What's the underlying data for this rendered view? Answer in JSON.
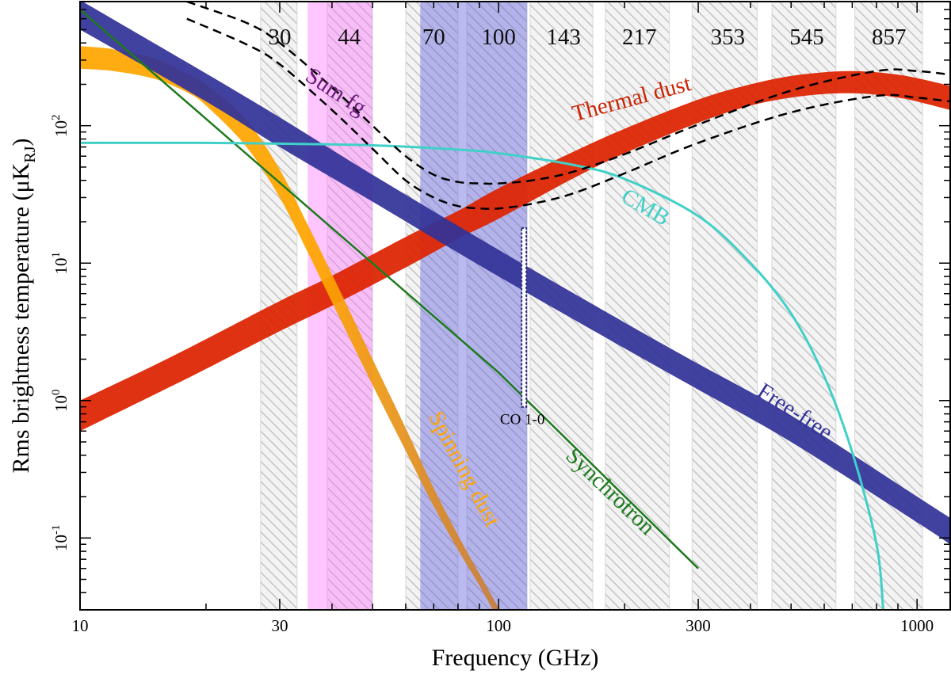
{
  "chart_data": {
    "type": "line",
    "title": "",
    "xlabel": "Frequency (GHz)",
    "ylabel": {
      "main": "Rms brightness temperature (μK",
      "sub": "RJ",
      "close": ")"
    },
    "xscale": "log",
    "yscale": "log",
    "xlim": [
      10,
      1200
    ],
    "ylim": [
      0.03,
      800
    ],
    "x_ticks": [
      {
        "value": 10,
        "label": "10"
      },
      {
        "value": 30,
        "label": "30"
      },
      {
        "value": 100,
        "label": "100"
      },
      {
        "value": 300,
        "label": "300"
      },
      {
        "value": 1000,
        "label": "1000"
      }
    ],
    "y_ticks": [
      {
        "value": 0.1,
        "base": "10",
        "exp": "-1"
      },
      {
        "value": 1,
        "base": "10",
        "exp": "0"
      },
      {
        "value": 10,
        "base": "10",
        "exp": "1"
      },
      {
        "value": 100,
        "base": "10",
        "exp": "2"
      }
    ],
    "bands": [
      {
        "label": "30",
        "lo": 27,
        "hi": 33,
        "label_x": 30
      },
      {
        "label": "44",
        "lo": 39,
        "hi": 50,
        "label_x": 44
      },
      {
        "label": "70",
        "lo": 60,
        "hi": 80,
        "label_x": 70
      },
      {
        "label": "100",
        "lo": 84,
        "hi": 117,
        "label_x": 100
      },
      {
        "label": "143",
        "lo": 119,
        "hi": 168,
        "label_x": 143
      },
      {
        "label": "217",
        "lo": 180,
        "hi": 256,
        "label_x": 217
      },
      {
        "label": "353",
        "lo": 290,
        "hi": 415,
        "label_x": 353
      },
      {
        "label": "545",
        "lo": 450,
        "hi": 640,
        "label_x": 545
      },
      {
        "label": "857",
        "lo": 710,
        "hi": 1030,
        "label_x": 857
      }
    ],
    "highlight_bands": [
      {
        "name": "pink",
        "lo": 35,
        "hi": 50,
        "color": "#ff66ff",
        "opacity": 0.38
      },
      {
        "name": "blue",
        "lo": 65,
        "hi": 117,
        "color": "#5b5bdd",
        "opacity": 0.42
      }
    ],
    "series": [
      {
        "name": "Thermal dust",
        "color": "#dd2200",
        "kind": "band",
        "x": [
          10,
          15,
          20,
          30,
          40,
          60,
          80,
          100,
          150,
          200,
          300,
          400,
          500,
          600,
          700,
          800,
          900,
          1000,
          1200
        ],
        "lower": [
          0.6,
          1.1,
          1.7,
          3.2,
          4.9,
          9.3,
          15,
          21,
          41,
          63,
          105,
          140,
          160,
          170,
          172,
          168,
          160,
          150,
          130
        ],
        "upper": [
          1.0,
          1.8,
          2.8,
          5.3,
          8.1,
          15.5,
          24,
          35,
          64,
          95,
          155,
          200,
          230,
          245,
          250,
          245,
          235,
          222,
          195
        ]
      },
      {
        "name": "Spinning dust",
        "color": "#ffa500",
        "color_end": "#c27a44",
        "kind": "band",
        "x": [
          10,
          12,
          15,
          18,
          20,
          25,
          30,
          35,
          40,
          50,
          60,
          70,
          80,
          90,
          100,
          110
        ],
        "lower": [
          260,
          250,
          220,
          175,
          140,
          70,
          30,
          12,
          5.2,
          1.3,
          0.43,
          0.17,
          0.082,
          0.045,
          0.025,
          0.015
        ],
        "upper": [
          380,
          360,
          310,
          240,
          200,
          110,
          48,
          19,
          8.3,
          2.0,
          0.63,
          0.23,
          0.105,
          0.055,
          0.031,
          0.018
        ]
      },
      {
        "name": "Free-free",
        "color": "#333399",
        "kind": "band",
        "x": [
          10,
          20,
          30,
          50,
          100,
          200,
          300,
          500,
          1000,
          1200
        ],
        "lower": [
          500,
          150,
          70,
          28,
          8,
          2.4,
          1.2,
          0.5,
          0.13,
          0.09
        ],
        "upper": [
          820,
          240,
          115,
          44,
          12.5,
          3.7,
          1.85,
          0.78,
          0.2,
          0.14
        ]
      },
      {
        "name": "Synchrotron",
        "color": "#1e7a1e",
        "kind": "line",
        "x": [
          10,
          100,
          300
        ],
        "y": [
          700,
          1.6,
          0.06
        ]
      },
      {
        "name": "CMB",
        "color": "#40d0c8",
        "kind": "line",
        "x": [
          10,
          20,
          30,
          50,
          80,
          100,
          150,
          200,
          300,
          400,
          500,
          600,
          700,
          800,
          830
        ],
        "y": [
          75,
          75,
          74,
          72,
          67,
          63,
          52,
          41,
          22,
          10,
          4.3,
          1.5,
          0.42,
          0.09,
          0.03
        ]
      },
      {
        "name": "Sum fg (upper)",
        "color": "#000000",
        "kind": "dashed",
        "x": [
          18,
          25,
          30,
          40,
          50,
          60,
          70,
          80,
          90,
          100,
          120,
          150,
          200,
          300,
          500,
          800,
          1000,
          1200
        ],
        "y": [
          800,
          560,
          400,
          190,
          100,
          60,
          44,
          39,
          38,
          38,
          40,
          46,
          62,
          102,
          180,
          250,
          250,
          235
        ]
      },
      {
        "name": "Sum fg (lower)",
        "color": "#000000",
        "kind": "dashed",
        "x": [
          18,
          25,
          30,
          40,
          50,
          60,
          70,
          80,
          90,
          100,
          120,
          150,
          200,
          300,
          500,
          800,
          1000,
          1200
        ],
        "y": [
          600,
          390,
          280,
          130,
          68,
          40,
          30,
          26,
          25,
          25,
          27,
          32,
          45,
          75,
          125,
          165,
          160,
          150
        ]
      }
    ],
    "co_line": {
      "label": "CO 1-0",
      "x": 115,
      "y_lo": 0.9,
      "y_hi": 18,
      "color": "#2a2a7a"
    },
    "annotations": [
      {
        "text": "Sum fg",
        "x": 40,
        "y": 160,
        "angle": 33,
        "color": "#6a1b7a"
      },
      {
        "text": "Thermal dust",
        "x": 210,
        "y": 140,
        "angle": -15,
        "color": "#cc2200"
      },
      {
        "text": "CMB",
        "x": 220,
        "y": 23,
        "angle": 30,
        "color": "#40d0c8"
      },
      {
        "text": "Free-free",
        "x": 500,
        "y": 0.75,
        "angle": 33,
        "color": "#333399"
      },
      {
        "text": "Spinning dust",
        "x": 80,
        "y": 0.3,
        "angle": 62,
        "color": "#ffa500"
      },
      {
        "text": "Synchrotron",
        "x": 180,
        "y": 0.2,
        "angle": 44,
        "color": "#1e7a1e"
      }
    ]
  }
}
